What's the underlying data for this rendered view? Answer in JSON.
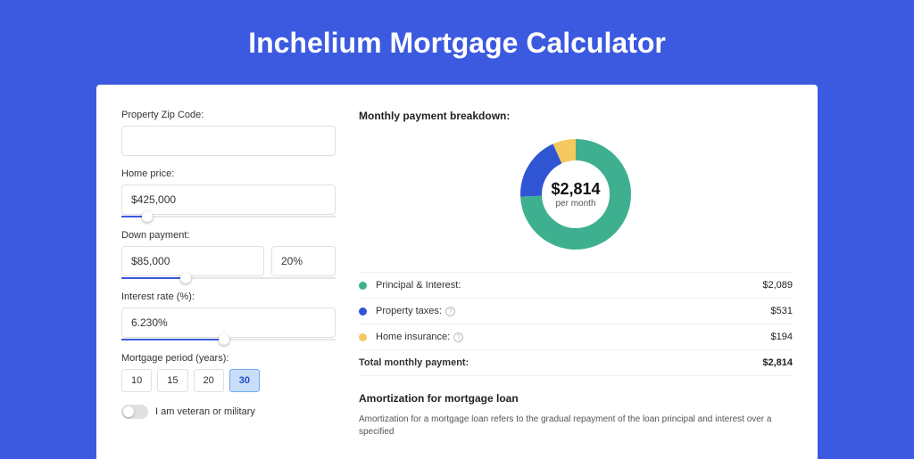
{
  "page": {
    "title": "Inchelium Mortgage Calculator"
  },
  "colors": {
    "page_bg": "#3b5ae0",
    "card_bg": "#ffffff",
    "principal": "#3fb08f",
    "taxes": "#2f55d4",
    "insurance": "#f4c95d",
    "accent": "#3b5ae0"
  },
  "form": {
    "zip": {
      "label": "Property Zip Code:",
      "value": ""
    },
    "home_price": {
      "label": "Home price:",
      "value": "$425,000",
      "slider_pct": 12
    },
    "down_payment": {
      "label": "Down payment:",
      "amount": "$85,000",
      "percent": "20%",
      "slider_pct": 30
    },
    "interest": {
      "label": "Interest rate (%):",
      "value": "6.230%",
      "slider_pct": 48
    },
    "period": {
      "label": "Mortgage period (years):",
      "options": [
        "10",
        "15",
        "20",
        "30"
      ],
      "selected": "30"
    },
    "veteran": {
      "label": "I am veteran or military",
      "checked": false
    }
  },
  "breakdown": {
    "title": "Monthly payment breakdown:",
    "center_amount": "$2,814",
    "center_sub": "per month",
    "items": [
      {
        "key": "principal",
        "label": "Principal & Interest:",
        "value": "$2,089",
        "color": "#3fb08f",
        "share": 0.742,
        "help": false
      },
      {
        "key": "taxes",
        "label": "Property taxes:",
        "value": "$531",
        "color": "#2f55d4",
        "share": 0.189,
        "help": true
      },
      {
        "key": "insurance",
        "label": "Home insurance:",
        "value": "$194",
        "color": "#f4c95d",
        "share": 0.069,
        "help": true
      }
    ],
    "total": {
      "label": "Total monthly payment:",
      "value": "$2,814"
    }
  },
  "amort": {
    "title": "Amortization for mortgage loan",
    "text": "Amortization for a mortgage loan refers to the gradual repayment of the loan principal and interest over a specified"
  },
  "donut": {
    "radius": 50,
    "stroke_width": 24,
    "circumference": 314.159
  }
}
